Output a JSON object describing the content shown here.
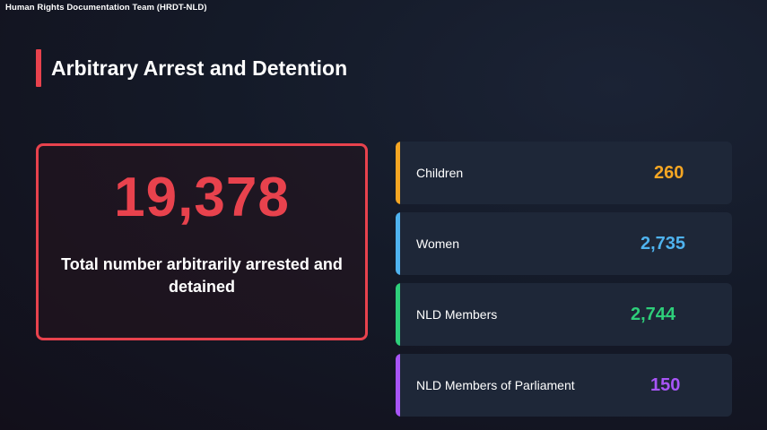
{
  "organization": "Human Rights Documentation Team (HRDT-NLD)",
  "title": "Arbitrary Arrest and Detention",
  "total": {
    "value": "19,378",
    "label": "Total number arbitrarily arrested and detained",
    "color": "#e8424d"
  },
  "stats": [
    {
      "label": "Children",
      "value": "260",
      "color": "#f5a623"
    },
    {
      "label": "Women",
      "value": "2,735",
      "color": "#4fb3ef"
    },
    {
      "label": "NLD Members",
      "value": "2,744",
      "color": "#2ecf7a"
    },
    {
      "label": "NLD Members of Parliament",
      "value": "150",
      "color": "#a855f7"
    }
  ]
}
